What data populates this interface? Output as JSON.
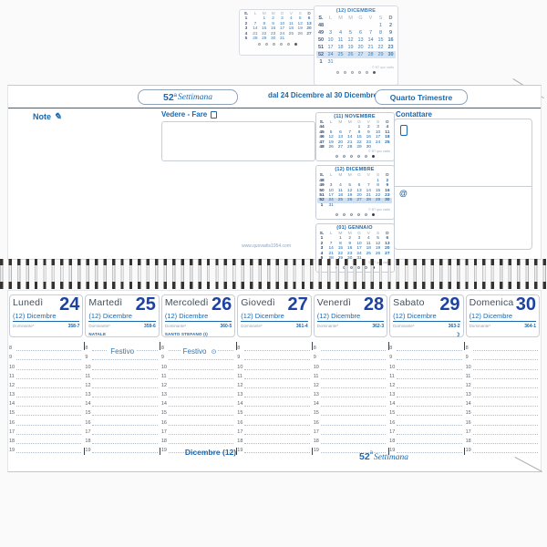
{
  "header": {
    "week_number": "52",
    "week_sup": "a",
    "week_word": "Settimana",
    "date_range": "dal 24 Dicembre al 30 Dicembre",
    "quarter": "Quarto Trimestre"
  },
  "top_panel": {
    "note_label": "Note",
    "todo_label": "Vedere - Fare",
    "contact_label": "Contattare",
    "at_symbol": "@",
    "website": "www.quovadis1954.com"
  },
  "minicals": {
    "weekday_header": [
      "S.",
      "L",
      "M",
      "M",
      "G",
      "V",
      "S",
      "D"
    ],
    "credit": "© BT quo vadis",
    "cals": [
      {
        "title": "(11) NOVEMBRE",
        "highlight_row": -1,
        "rows": [
          [
            "44",
            "",
            "",
            "",
            "1",
            "2",
            "3",
            "4"
          ],
          [
            "45",
            "5",
            "6",
            "7",
            "8",
            "9",
            "10",
            "11"
          ],
          [
            "46",
            "12",
            "13",
            "14",
            "15",
            "16",
            "17",
            "18"
          ],
          [
            "47",
            "19",
            "20",
            "21",
            "22",
            "23",
            "24",
            "25"
          ],
          [
            "48",
            "26",
            "27",
            "28",
            "29",
            "30",
            "",
            ""
          ]
        ]
      },
      {
        "title": "(12) DICEMBRE",
        "highlight_row": 4,
        "rows": [
          [
            "48",
            "",
            "",
            "",
            "",
            "",
            "1",
            "2"
          ],
          [
            "49",
            "3",
            "4",
            "5",
            "6",
            "7",
            "8",
            "9"
          ],
          [
            "50",
            "10",
            "11",
            "12",
            "13",
            "14",
            "15",
            "16"
          ],
          [
            "51",
            "17",
            "18",
            "19",
            "20",
            "21",
            "22",
            "23"
          ],
          [
            "52",
            "24",
            "25",
            "26",
            "27",
            "28",
            "29",
            "30"
          ],
          [
            "1",
            "31",
            "",
            "",
            "",
            "",
            "",
            ""
          ]
        ]
      },
      {
        "title": "(01) GENNAIO",
        "highlight_row": -1,
        "rows": [
          [
            "1",
            "",
            "1",
            "2",
            "3",
            "4",
            "5",
            "6"
          ],
          [
            "2",
            "7",
            "8",
            "9",
            "10",
            "11",
            "12",
            "13"
          ],
          [
            "3",
            "14",
            "15",
            "16",
            "17",
            "18",
            "19",
            "20"
          ],
          [
            "4",
            "21",
            "22",
            "23",
            "24",
            "25",
            "26",
            "27"
          ],
          [
            "5",
            "28",
            "29",
            "30",
            "31",
            "",
            "",
            ""
          ]
        ]
      }
    ]
  },
  "week": {
    "days": [
      {
        "name": "Lunedì",
        "num": "24",
        "month": "(12) Dicembre",
        "dominante": "Dominante*",
        "doy": "358-7",
        "holiday": "",
        "mark": "",
        "festivo": "",
        "festivo_icon": ""
      },
      {
        "name": "Martedì",
        "num": "25",
        "month": "(12) Dicembre",
        "dominante": "Dominante*",
        "doy": "359-6",
        "holiday": "NATALE",
        "mark": "",
        "festivo": "Festivo",
        "festivo_icon": ""
      },
      {
        "name": "Mercoledì",
        "num": "26",
        "month": "(12) Dicembre",
        "dominante": "Dominante*",
        "doy": "360-5",
        "holiday": "SANTO STEFANO (I)",
        "mark": "",
        "festivo": "Festivo",
        "festivo_icon": "⊙"
      },
      {
        "name": "Giovedì",
        "num": "27",
        "month": "(12) Dicembre",
        "dominante": "Dominante*",
        "doy": "361-4",
        "holiday": "",
        "mark": "",
        "festivo": "",
        "festivo_icon": ""
      },
      {
        "name": "Venerdì",
        "num": "28",
        "month": "(12) Dicembre",
        "dominante": "Dominante*",
        "doy": "362-3",
        "holiday": "",
        "mark": "",
        "festivo": "",
        "festivo_icon": ""
      },
      {
        "name": "Sabato",
        "num": "29",
        "month": "(12) Dicembre",
        "dominante": "Dominante*",
        "doy": "363-2",
        "holiday": "",
        "mark": "☽",
        "festivo": "",
        "festivo_icon": ""
      },
      {
        "name": "Domenica",
        "num": "30",
        "month": "(12) Dicembre",
        "dominante": "Dominante*",
        "doy": "364-1",
        "holiday": "",
        "mark": "",
        "festivo": "",
        "festivo_icon": ""
      }
    ],
    "hours": [
      "8",
      "9",
      "10",
      "11",
      "12",
      "13",
      "14",
      "15",
      "16",
      "17",
      "18",
      "19"
    ],
    "footer": {
      "month": "Dicembre (12)",
      "week_number": "52",
      "week_sup": "a",
      "week_word": "Settimana"
    }
  },
  "colors": {
    "accent_blue": "#1a67ad",
    "number_blue": "#1c43a2",
    "highlight": "#cfe0f2"
  }
}
